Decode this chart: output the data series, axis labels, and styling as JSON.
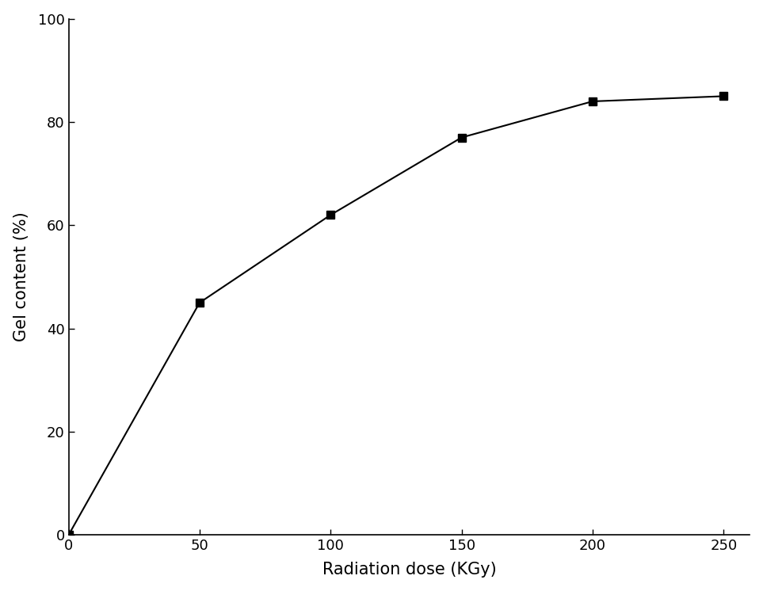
{
  "x": [
    0,
    50,
    100,
    150,
    200,
    250
  ],
  "y": [
    0,
    45,
    62,
    77,
    84,
    85
  ],
  "xlabel": "Radiation dose (KGy)",
  "ylabel": "Gel content (%)",
  "xlim": [
    0,
    260
  ],
  "ylim": [
    0,
    100
  ],
  "xticks": [
    0,
    50,
    100,
    150,
    200,
    250
  ],
  "yticks": [
    0,
    20,
    40,
    60,
    80,
    100
  ],
  "line_color": "#000000",
  "marker": "s",
  "marker_size": 7,
  "marker_color": "#000000",
  "line_width": 1.5,
  "xlabel_fontsize": 15,
  "ylabel_fontsize": 15,
  "tick_fontsize": 13,
  "background_color": "#ffffff",
  "figure_width": 9.63,
  "figure_height": 7.46,
  "dpi": 100
}
